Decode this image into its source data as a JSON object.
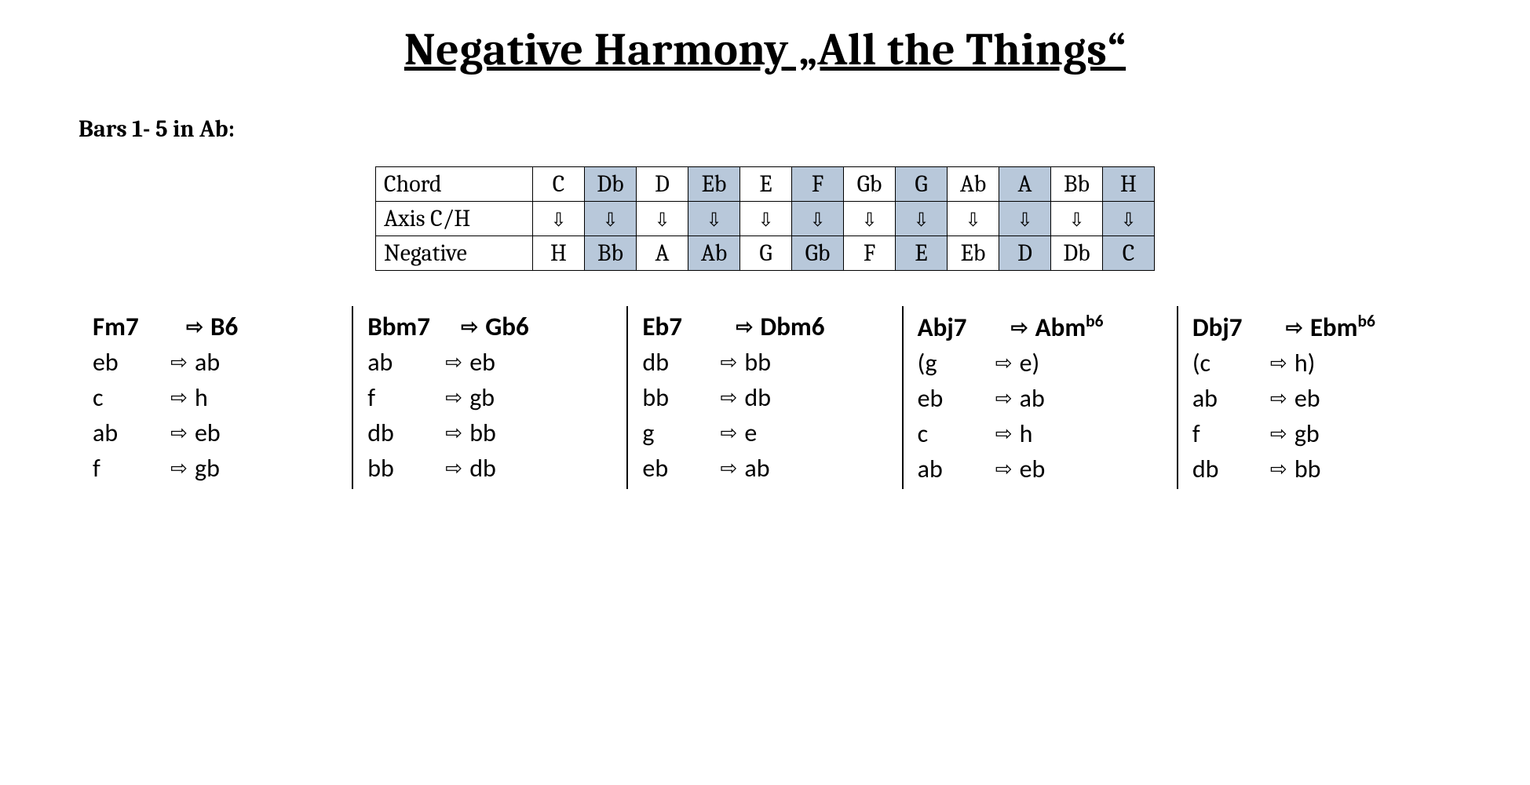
{
  "title": "Negative Harmony „All the Things“",
  "section_label": "Bars 1- 5 in Ab:",
  "axis_table": {
    "row_labels": [
      "Chord",
      "Axis C/H",
      "Negative"
    ],
    "chord_row": [
      "C",
      "Db",
      "D",
      "Eb",
      "E",
      "F",
      "Gb",
      "G",
      "Ab",
      "A",
      "Bb",
      "H"
    ],
    "negative_row": [
      "H",
      "Bb",
      "A",
      "Ab",
      "G",
      "Gb",
      "F",
      "E",
      "Eb",
      "D",
      "Db",
      "C"
    ],
    "shaded_idx": [
      1,
      3,
      5,
      7,
      9,
      11
    ],
    "shade_color": "#b8c8da",
    "arrow_glyph": "⇩"
  },
  "right_arrow": "⇨",
  "columns": [
    {
      "head": {
        "from": "Fm7",
        "to": "B6"
      },
      "rows": [
        {
          "from": "eb",
          "to": "ab"
        },
        {
          "from": "c",
          "to": "h"
        },
        {
          "from": "ab",
          "to": "eb"
        },
        {
          "from": "f",
          "to": "gb"
        }
      ]
    },
    {
      "head": {
        "from": "Bbm7",
        "to": "Gb6"
      },
      "rows": [
        {
          "from": "ab",
          "to": "eb"
        },
        {
          "from": "f",
          "to": "gb"
        },
        {
          "from": "db",
          "to": "bb"
        },
        {
          "from": "bb",
          "to": "db"
        }
      ]
    },
    {
      "head": {
        "from": "Eb7",
        "to": "Dbm6"
      },
      "rows": [
        {
          "from": "db",
          "to": "bb"
        },
        {
          "from": "bb",
          "to": "db"
        },
        {
          "from": "g",
          "to": "e"
        },
        {
          "from": "eb",
          "to": "ab"
        }
      ]
    },
    {
      "head": {
        "from": "Abj7",
        "to_html": "Abm<sup>b6</sup>"
      },
      "rows": [
        {
          "from": "(g",
          "to": "e)"
        },
        {
          "from": "eb",
          "to": "ab"
        },
        {
          "from": "c",
          "to": "h"
        },
        {
          "from": "ab",
          "to": "eb"
        }
      ]
    },
    {
      "head": {
        "from": "Dbj7",
        "to_html": "Ebm<sup>b6</sup>"
      },
      "rows": [
        {
          "from": "(c",
          "to": "h)"
        },
        {
          "from": "ab",
          "to": "eb"
        },
        {
          "from": "f",
          "to": "gb"
        },
        {
          "from": "db",
          "to": "bb"
        }
      ]
    }
  ]
}
